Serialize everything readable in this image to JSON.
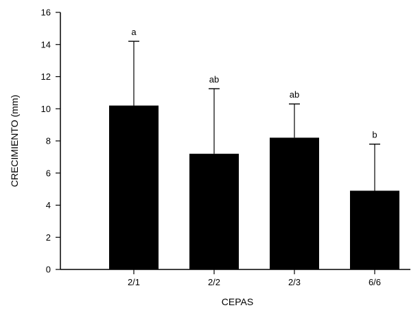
{
  "chart_data": {
    "type": "bar",
    "title": "",
    "xlabel": "CEPAS",
    "ylabel": "CRECIMIENTO (mm)",
    "ylim": [
      0,
      16
    ],
    "yticks": [
      0,
      2,
      4,
      6,
      8,
      10,
      12,
      14,
      16
    ],
    "categories": [
      "2/1",
      "2/2",
      "2/3",
      "6/6"
    ],
    "values": [
      10.2,
      7.2,
      8.2,
      4.9
    ],
    "error_upper": [
      14.2,
      11.25,
      10.3,
      7.8
    ],
    "significance_labels": [
      "a",
      "ab",
      "ab",
      "b"
    ],
    "bar_color": "#000000",
    "grid": false,
    "legend": "none"
  }
}
